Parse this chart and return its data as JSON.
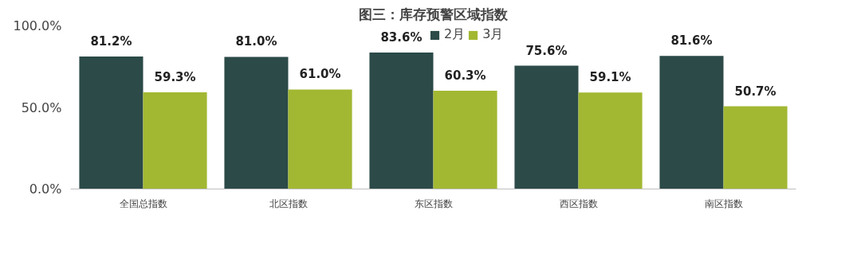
{
  "chart_data": {
    "type": "bar",
    "title": "图三：库存预警区域指数",
    "categories": [
      "全国总指数",
      "北区指数",
      "东区指数",
      "西区指数",
      "南区指数"
    ],
    "series": [
      {
        "name": "2月",
        "color": "#2b4a48",
        "values": [
          81.2,
          81.0,
          83.6,
          75.6,
          81.6
        ],
        "value_labels": [
          "81.2%",
          "81.0%",
          "83.6%",
          "75.6%",
          "81.6%"
        ]
      },
      {
        "name": "3月",
        "color": "#a2b832",
        "values": [
          59.3,
          61.0,
          60.3,
          59.1,
          50.7
        ],
        "value_labels": [
          "59.3%",
          "61.0%",
          "60.3%",
          "59.1%",
          "50.7%"
        ]
      }
    ],
    "ylim": [
      0,
      100
    ],
    "yticks": [
      {
        "value": 0,
        "label": "0.0%"
      },
      {
        "value": 50,
        "label": "50.0%"
      },
      {
        "value": 100,
        "label": "100.0%"
      }
    ],
    "legend": "top"
  }
}
